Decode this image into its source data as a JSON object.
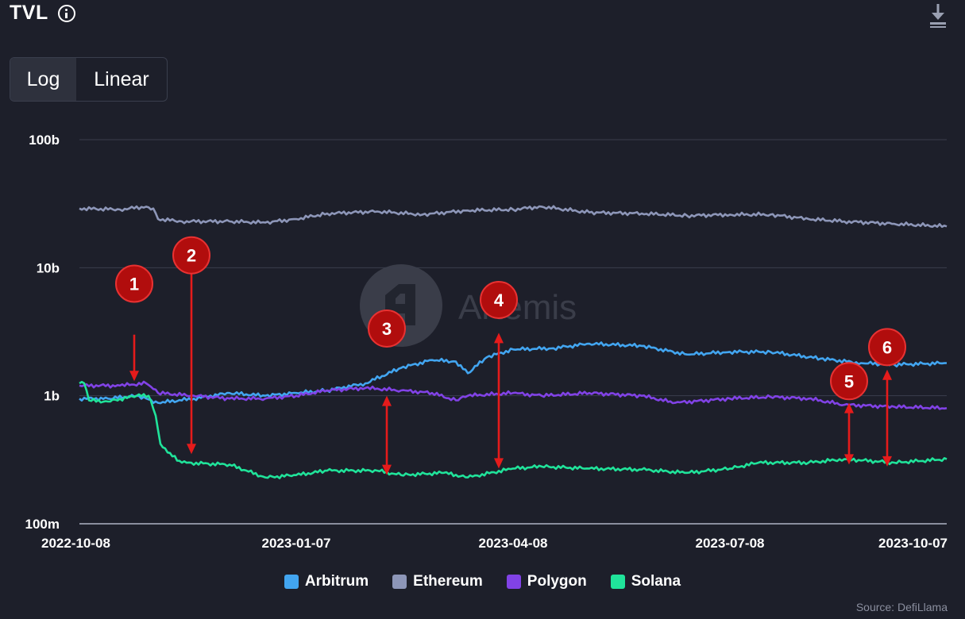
{
  "header": {
    "title": "TVL"
  },
  "scale_toggle": {
    "options": [
      "Log",
      "Linear"
    ],
    "selected": "Log"
  },
  "watermark": {
    "text": "Artemis"
  },
  "source": "Source: DefiLlama",
  "colors": {
    "Arbitrum": "#42a5f0",
    "Ethereum": "#8d96b8",
    "Polygon": "#8142e6",
    "Solana": "#20e39a",
    "annotation": "#e51b1b"
  },
  "chart_data": {
    "type": "line",
    "yscale": "log",
    "ylim": [
      100000000,
      100000000000
    ],
    "ytick_values": [
      100000000,
      1000000000,
      10000000000,
      100000000000
    ],
    "ytick_labels": [
      "100m",
      "1b",
      "10b",
      "100b"
    ],
    "xlim": [
      "2022-10-08",
      "2023-10-07"
    ],
    "xtick_labels": [
      "2022-10-08",
      "2023-01-07",
      "2023-04-08",
      "2023-07-08",
      "2023-10-07"
    ],
    "grid": true,
    "legend": "bottom-center",
    "series": [
      {
        "name": "Ethereum",
        "color": "#8d96b8",
        "points": [
          [
            "2022-10-08",
            29000000000.0
          ],
          [
            "2022-10-25",
            28500000000.0
          ],
          [
            "2022-11-05",
            30000000000.0
          ],
          [
            "2022-11-08",
            29000000000.0
          ],
          [
            "2022-11-10",
            24000000000.0
          ],
          [
            "2022-11-20",
            23000000000.0
          ],
          [
            "2022-12-10",
            23000000000.0
          ],
          [
            "2022-12-25",
            22500000000.0
          ],
          [
            "2023-01-07",
            24000000000.0
          ],
          [
            "2023-01-20",
            26500000000.0
          ],
          [
            "2023-02-10",
            27500000000.0
          ],
          [
            "2023-03-01",
            26000000000.0
          ],
          [
            "2023-03-20",
            28000000000.0
          ],
          [
            "2023-04-08",
            28500000000.0
          ],
          [
            "2023-04-20",
            30000000000.0
          ],
          [
            "2023-05-10",
            27000000000.0
          ],
          [
            "2023-06-01",
            26500000000.0
          ],
          [
            "2023-06-20",
            25500000000.0
          ],
          [
            "2023-07-08",
            26000000000.0
          ],
          [
            "2023-07-25",
            26000000000.0
          ],
          [
            "2023-08-10",
            24000000000.0
          ],
          [
            "2023-08-25",
            23000000000.0
          ],
          [
            "2023-09-15",
            22000000000.0
          ],
          [
            "2023-10-07",
            21000000000.0
          ]
        ]
      },
      {
        "name": "Arbitrum",
        "color": "#42a5f0",
        "points": [
          [
            "2022-10-08",
            950000000.0
          ],
          [
            "2022-10-20",
            950000000.0
          ],
          [
            "2022-11-01",
            1000000000.0
          ],
          [
            "2022-11-10",
            880000000.0
          ],
          [
            "2022-11-25",
            950000000.0
          ],
          [
            "2022-12-10",
            1050000000.0
          ],
          [
            "2022-12-25",
            1000000000.0
          ],
          [
            "2023-01-07",
            1050000000.0
          ],
          [
            "2023-01-20",
            1100000000.0
          ],
          [
            "2023-02-05",
            1250000000.0
          ],
          [
            "2023-02-20",
            1650000000.0
          ],
          [
            "2023-03-05",
            1900000000.0
          ],
          [
            "2023-03-15",
            1850000000.0
          ],
          [
            "2023-03-20",
            1500000000.0
          ],
          [
            "2023-03-28",
            2000000000.0
          ],
          [
            "2023-04-08",
            2300000000.0
          ],
          [
            "2023-04-25",
            2350000000.0
          ],
          [
            "2023-05-10",
            2550000000.0
          ],
          [
            "2023-06-01",
            2450000000.0
          ],
          [
            "2023-06-20",
            2100000000.0
          ],
          [
            "2023-07-08",
            2200000000.0
          ],
          [
            "2023-07-25",
            2200000000.0
          ],
          [
            "2023-08-15",
            1950000000.0
          ],
          [
            "2023-09-01",
            1800000000.0
          ],
          [
            "2023-09-15",
            1750000000.0
          ],
          [
            "2023-10-07",
            1800000000.0
          ]
        ]
      },
      {
        "name": "Polygon",
        "color": "#8142e6",
        "points": [
          [
            "2022-10-08",
            1200000000.0
          ],
          [
            "2022-10-25",
            1200000000.0
          ],
          [
            "2022-11-05",
            1250000000.0
          ],
          [
            "2022-11-10",
            1050000000.0
          ],
          [
            "2022-11-25",
            1000000000.0
          ],
          [
            "2022-12-10",
            950000000.0
          ],
          [
            "2022-12-25",
            950000000.0
          ],
          [
            "2023-01-07",
            1000000000.0
          ],
          [
            "2023-01-20",
            1100000000.0
          ],
          [
            "2023-02-05",
            1150000000.0
          ],
          [
            "2023-02-20",
            1100000000.0
          ],
          [
            "2023-03-05",
            1050000000.0
          ],
          [
            "2023-03-15",
            920000000.0
          ],
          [
            "2023-03-20",
            1000000000.0
          ],
          [
            "2023-04-08",
            1050000000.0
          ],
          [
            "2023-04-20",
            1000000000.0
          ],
          [
            "2023-05-10",
            1050000000.0
          ],
          [
            "2023-06-01",
            1000000000.0
          ],
          [
            "2023-06-15",
            880000000.0
          ],
          [
            "2023-07-08",
            950000000.0
          ],
          [
            "2023-07-25",
            980000000.0
          ],
          [
            "2023-08-10",
            950000000.0
          ],
          [
            "2023-08-25",
            850000000.0
          ],
          [
            "2023-09-15",
            820000000.0
          ],
          [
            "2023-10-07",
            800000000.0
          ]
        ]
      },
      {
        "name": "Solana",
        "color": "#20e39a",
        "points": [
          [
            "2022-10-08",
            1250000000.0
          ],
          [
            "2022-10-10",
            1250000000.0
          ],
          [
            "2022-10-12",
            920000000.0
          ],
          [
            "2022-10-20",
            900000000.0
          ],
          [
            "2022-11-01",
            1000000000.0
          ],
          [
            "2022-11-06",
            1000000000.0
          ],
          [
            "2022-11-09",
            700000000.0
          ],
          [
            "2022-11-11",
            420000000.0
          ],
          [
            "2022-11-14",
            360000000.0
          ],
          [
            "2022-11-20",
            300000000.0
          ],
          [
            "2022-12-10",
            290000000.0
          ],
          [
            "2022-12-25",
            230000000.0
          ],
          [
            "2023-01-07",
            240000000.0
          ],
          [
            "2023-01-20",
            260000000.0
          ],
          [
            "2023-02-10",
            260000000.0
          ],
          [
            "2023-02-20",
            240000000.0
          ],
          [
            "2023-03-10",
            250000000.0
          ],
          [
            "2023-03-20",
            230000000.0
          ],
          [
            "2023-04-08",
            270000000.0
          ],
          [
            "2023-04-20",
            280000000.0
          ],
          [
            "2023-05-10",
            270000000.0
          ],
          [
            "2023-06-01",
            265000000.0
          ],
          [
            "2023-06-20",
            250000000.0
          ],
          [
            "2023-07-08",
            270000000.0
          ],
          [
            "2023-07-20",
            300000000.0
          ],
          [
            "2023-08-10",
            300000000.0
          ],
          [
            "2023-08-25",
            320000000.0
          ],
          [
            "2023-09-15",
            300000000.0
          ],
          [
            "2023-10-07",
            320000000.0
          ]
        ]
      }
    ]
  },
  "annotations": [
    {
      "label": "1",
      "badge": [
        "2022-10-31",
        7500000000.0
      ],
      "arrow_from": [
        "2022-10-31",
        3000000000.0
      ],
      "arrow_to": [
        "2022-10-31",
        1300000000.0
      ],
      "double": false
    },
    {
      "label": "2",
      "badge": [
        "2022-11-24",
        12500000000.0
      ],
      "arrow_from": [
        "2022-11-24",
        9500000000.0
      ],
      "arrow_to": [
        "2022-11-24",
        350000000.0
      ],
      "double": false
    },
    {
      "label": "3",
      "badge": [
        "2023-02-14",
        3350000000.0
      ],
      "arrow_from": [
        "2023-02-14",
        1000000000.0
      ],
      "arrow_to": [
        "2023-02-14",
        240000000.0
      ],
      "double": true
    },
    {
      "label": "4",
      "badge": [
        "2023-04-02",
        5600000000.0
      ],
      "arrow_from": [
        "2023-04-02",
        3100000000.0
      ],
      "arrow_to": [
        "2023-04-02",
        270000000.0
      ],
      "double": true
    },
    {
      "label": "5",
      "badge": [
        "2023-08-27",
        1300000000.0
      ],
      "arrow_from": [
        "2023-08-27",
        880000000.0
      ],
      "arrow_to": [
        "2023-08-27",
        290000000.0
      ],
      "double": true
    },
    {
      "label": "6",
      "badge": [
        "2023-09-12",
        2400000000.0
      ],
      "arrow_from": [
        "2023-09-12",
        1600000000.0
      ],
      "arrow_to": [
        "2023-09-12",
        280000000.0
      ],
      "double": true
    }
  ]
}
